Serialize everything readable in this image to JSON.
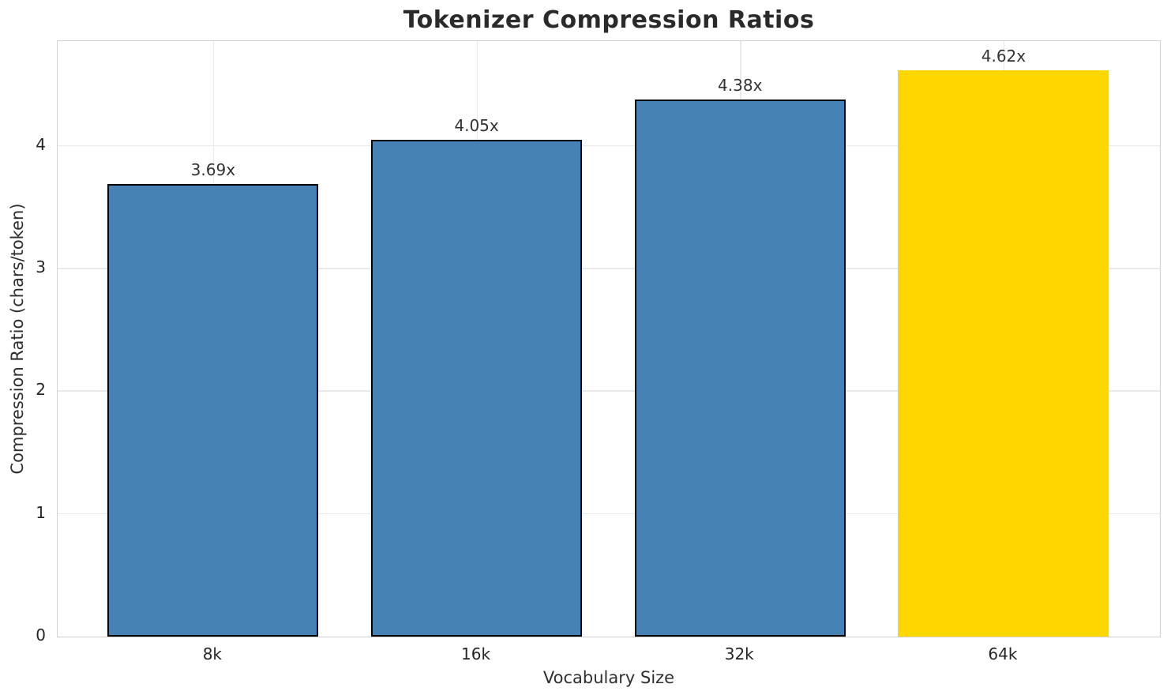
{
  "chart_data": {
    "type": "bar",
    "title": "Tokenizer Compression Ratios",
    "xlabel": "Vocabulary Size",
    "ylabel": "Compression Ratio (chars/token)",
    "categories": [
      "8k",
      "16k",
      "32k",
      "64k"
    ],
    "values": [
      3.69,
      4.05,
      4.38,
      4.62
    ],
    "value_labels": [
      "3.69x",
      "4.05x",
      "4.38x",
      "4.62x"
    ],
    "yticks": [
      0,
      1,
      2,
      3,
      4
    ],
    "ylim": [
      0,
      4.85
    ],
    "xlim": [
      -0.59,
      3.59
    ],
    "bar_width": 0.8,
    "grid": true,
    "legend": "none",
    "bar_colors": [
      "#4682B4",
      "#4682B4",
      "#4682B4",
      "#FFD700"
    ],
    "bar_edge_colors": [
      "#000000",
      "#000000",
      "#000000",
      "none"
    ],
    "highlight_index": 3
  },
  "colors": {
    "background": "#ffffff",
    "spine": "#d2d2d2",
    "grid": "#e9e9e9",
    "title_text": "#2a2a2a",
    "axis_label_text": "#2e2e2e",
    "tick_text": "#262626",
    "annotation_text": "#333333",
    "bar_blue": "#4682B4",
    "bar_gold": "#FFD700"
  }
}
